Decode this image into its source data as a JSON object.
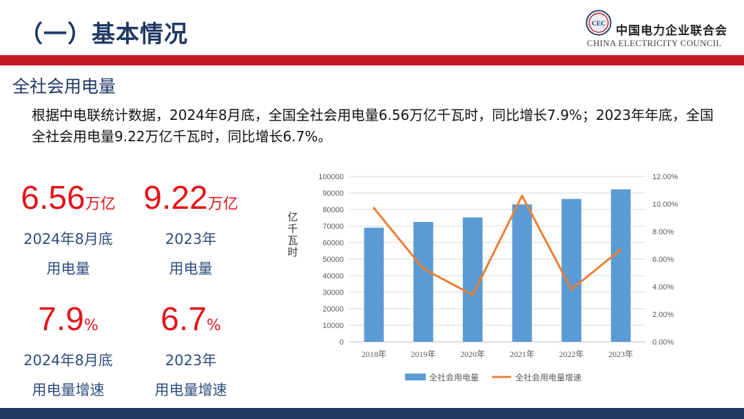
{
  "header": {
    "title": "（一）基本情况",
    "org_cn": "中国电力企业联合会",
    "org_en": "CHINA ELECTRICITY COUNCIL",
    "logo_text": "CEC"
  },
  "section": {
    "title": "全社会用电量",
    "body": "根据中电联统计数据，2024年8月底，全国全社会用电量6.56万亿千瓦时，同比增长7.9%；2023年年底，全国全社会用电量9.22万亿千瓦时，同比增长6.7%。"
  },
  "kpis": [
    {
      "value": "6.56",
      "unit": "万亿",
      "label1": "2024年8月底",
      "label2": "用电量"
    },
    {
      "value": "9.22",
      "unit": "万亿",
      "label1": "2023年",
      "label2": "用电量"
    },
    {
      "value": "7.9",
      "unit": "%",
      "label1": "2024年8月底",
      "label2": "用电量增速"
    },
    {
      "value": "6.7",
      "unit": "%",
      "label1": "2023年",
      "label2": "用电量增速"
    }
  ],
  "chart_data": {
    "type": "bar",
    "categories": [
      "2018年",
      "2019年",
      "2020年",
      "2021年",
      "2022年",
      "2023年"
    ],
    "series": [
      {
        "name": "全社会用电量",
        "type": "bar",
        "axis": "left",
        "color": "#5b9bd5",
        "values": [
          69000,
          72500,
          75200,
          83100,
          86400,
          92200
        ]
      },
      {
        "name": "全社会用电量增速",
        "type": "line",
        "axis": "right",
        "color": "#ed7d31",
        "values": [
          0.097,
          0.053,
          0.034,
          0.106,
          0.038,
          0.067
        ]
      }
    ],
    "ylabel": "亿千瓦时",
    "ylim": [
      0,
      100000
    ],
    "yticks": [
      "0",
      "10000",
      "20000",
      "30000",
      "40000",
      "50000",
      "60000",
      "70000",
      "80000",
      "90000",
      "100000"
    ],
    "y2lim": [
      0,
      0.12
    ],
    "y2ticks": [
      "0.00%",
      "2.00%",
      "4.00%",
      "6.00%",
      "8.00%",
      "10.00%",
      "12.00%"
    ],
    "grid": true,
    "legend": "bottom"
  }
}
